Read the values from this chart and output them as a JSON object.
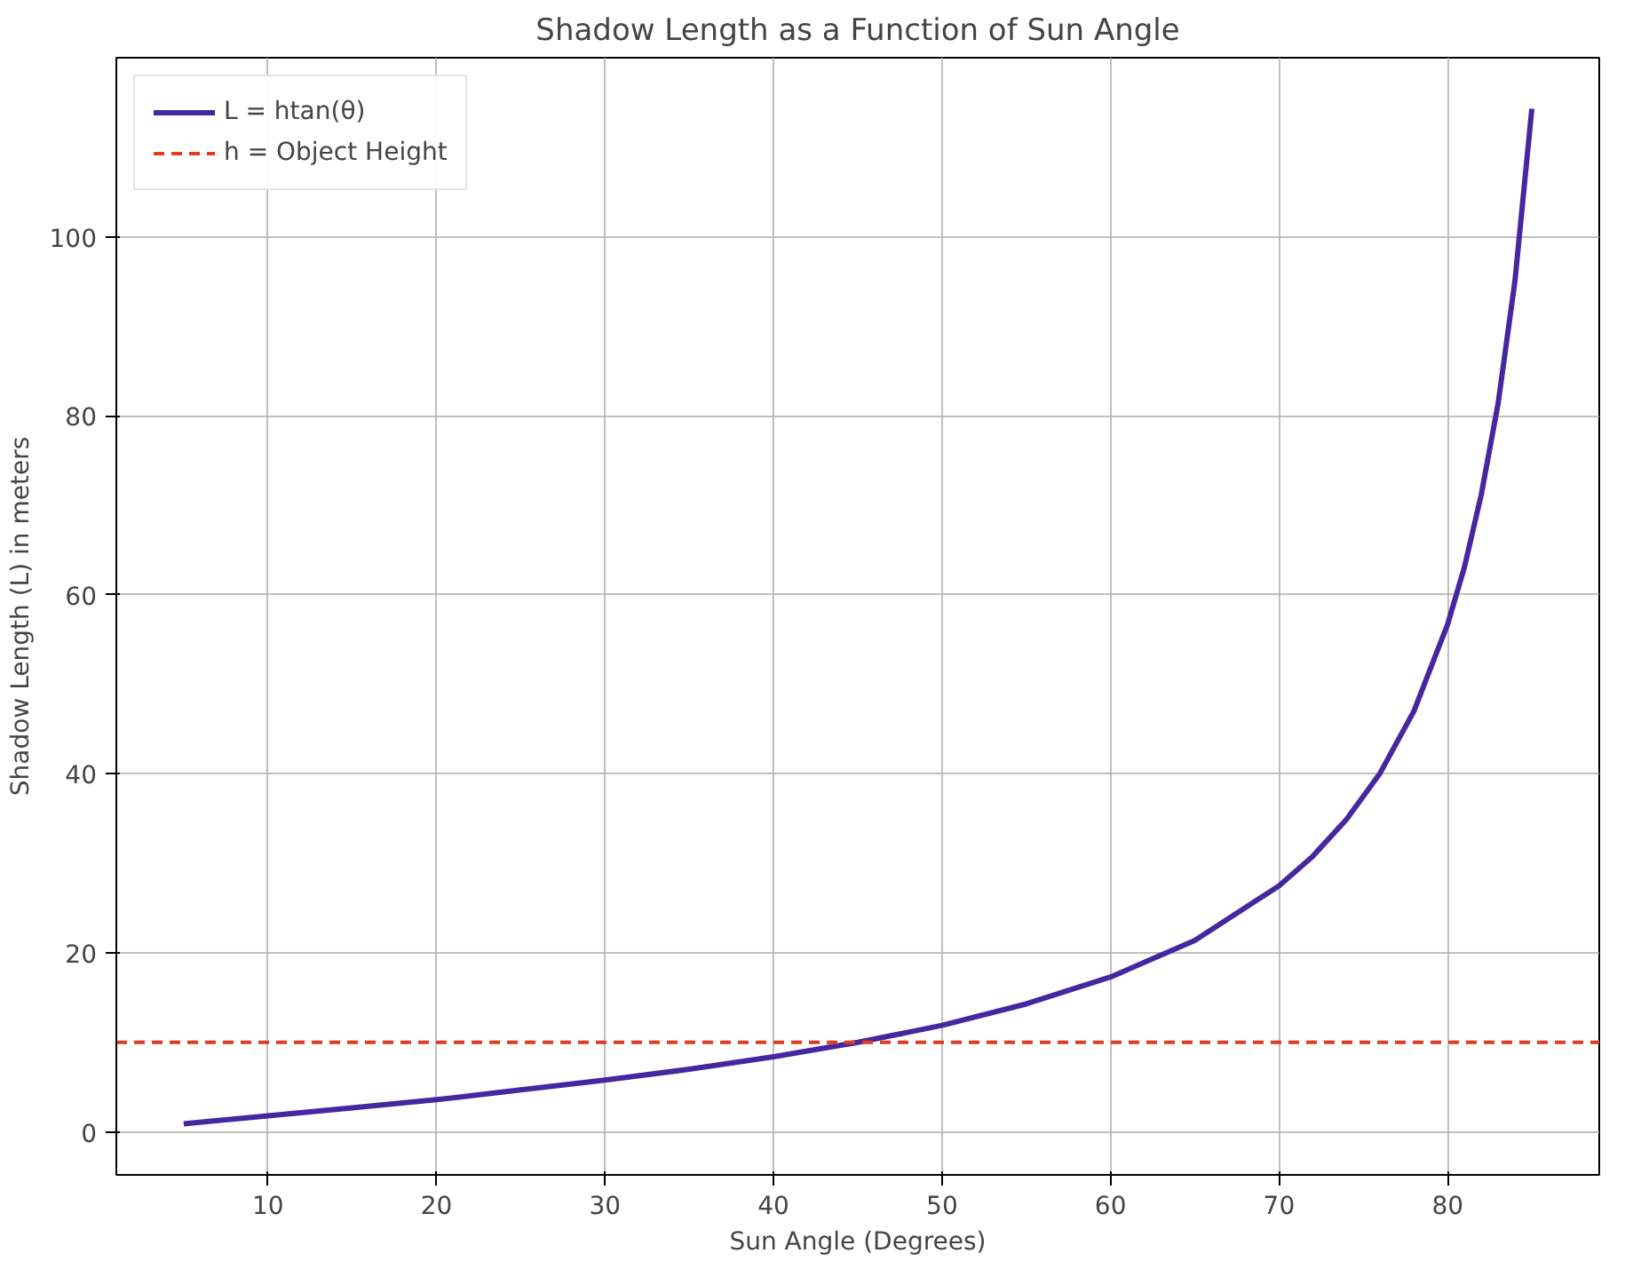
{
  "chart_data": {
    "type": "line",
    "title": "Shadow Length as a Function of Sun Angle",
    "xlabel": "Sun Angle (Degrees)",
    "ylabel": "Shadow Length (L) in meters",
    "x": [
      5,
      10,
      15,
      20,
      25,
      30,
      35,
      40,
      45,
      50,
      55,
      60,
      65,
      70,
      72,
      74,
      76,
      78,
      80,
      81,
      82,
      83,
      84,
      85
    ],
    "series": [
      {
        "name": "L = htan(θ)",
        "color": "#4527a0",
        "values": [
          0.9,
          1.8,
          2.7,
          3.6,
          4.7,
          5.8,
          7.0,
          8.4,
          10.0,
          11.9,
          14.3,
          17.3,
          21.4,
          27.5,
          30.8,
          34.9,
          40.1,
          47.0,
          56.7,
          63.1,
          71.2,
          81.4,
          95.1,
          114.3
        ]
      }
    ],
    "ref_lines": [
      {
        "axis": "y",
        "value": 10,
        "label": "h = Object Height",
        "color": "#e53a22",
        "line_style": "dashed"
      }
    ],
    "xlim": [
      1,
      89
    ],
    "ylim": [
      -4.8,
      120
    ],
    "xticks": [
      10,
      20,
      30,
      40,
      50,
      60,
      70,
      80
    ],
    "yticks": [
      0,
      20,
      40,
      60,
      80,
      100
    ],
    "grid": true,
    "legend": "top left",
    "line_style": "solid",
    "marker": "none"
  }
}
